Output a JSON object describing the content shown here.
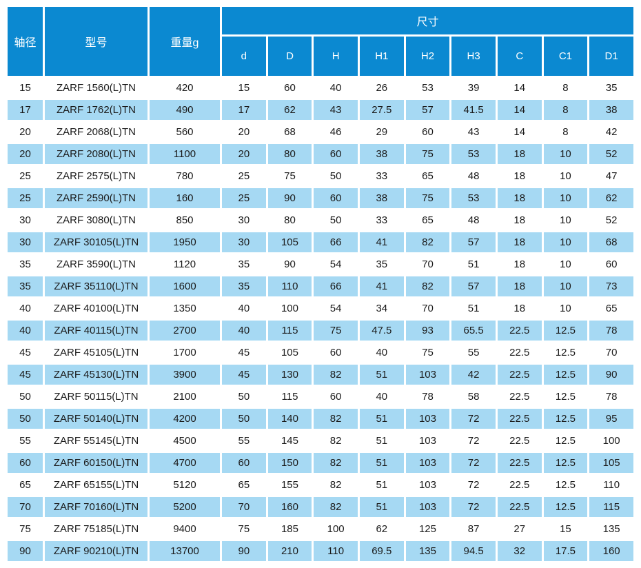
{
  "chart_data": {
    "type": "table",
    "header": {
      "shaft_diameter": "轴径",
      "model": "型号",
      "weight": "重量g",
      "dimensions_group": "尺寸",
      "dimension_columns": [
        "d",
        "D",
        "H",
        "H1",
        "H2",
        "H3",
        "C",
        "C1",
        "D1"
      ]
    },
    "columns": [
      "轴径",
      "型号",
      "重量g",
      "d",
      "D",
      "H",
      "H1",
      "H2",
      "H3",
      "C",
      "C1",
      "D1"
    ],
    "rows": [
      [
        15,
        "ZARF 1560(L)TN",
        420,
        15,
        60,
        40,
        26,
        53,
        39,
        14,
        8,
        35
      ],
      [
        17,
        "ZARF 1762(L)TN",
        490,
        17,
        62,
        43,
        27.5,
        57,
        41.5,
        14,
        8,
        38
      ],
      [
        20,
        "ZARF 2068(L)TN",
        560,
        20,
        68,
        46,
        29,
        60,
        43,
        14,
        8,
        42
      ],
      [
        20,
        "ZARF 2080(L)TN",
        1100,
        20,
        80,
        60,
        38,
        75,
        53,
        18,
        10,
        52
      ],
      [
        25,
        "ZARF 2575(L)TN",
        780,
        25,
        75,
        50,
        33,
        65,
        48,
        18,
        10,
        47
      ],
      [
        25,
        "ZARF 2590(L)TN",
        160,
        25,
        90,
        60,
        38,
        75,
        53,
        18,
        10,
        62
      ],
      [
        30,
        "ZARF 3080(L)TN",
        850,
        30,
        80,
        50,
        33,
        65,
        48,
        18,
        10,
        52
      ],
      [
        30,
        "ZARF 30105(L)TN",
        1950,
        30,
        105,
        66,
        41,
        82,
        57,
        18,
        10,
        68
      ],
      [
        35,
        "ZARF 3590(L)TN",
        1120,
        35,
        90,
        54,
        35,
        70,
        51,
        18,
        10,
        60
      ],
      [
        35,
        "ZARF 35110(L)TN",
        1600,
        35,
        110,
        66,
        41,
        82,
        57,
        18,
        10,
        73
      ],
      [
        40,
        "ZARF 40100(L)TN",
        1350,
        40,
        100,
        54,
        34,
        70,
        51,
        18,
        10,
        65
      ],
      [
        40,
        "ZARF 40115(L)TN",
        2700,
        40,
        115,
        75,
        47.5,
        93,
        65.5,
        22.5,
        12.5,
        78
      ],
      [
        45,
        "ZARF 45105(L)TN",
        1700,
        45,
        105,
        60,
        40,
        75,
        55,
        22.5,
        12.5,
        70
      ],
      [
        45,
        "ZARF 45130(L)TN",
        3900,
        45,
        130,
        82,
        51,
        103,
        42,
        22.5,
        12.5,
        90
      ],
      [
        50,
        "ZARF 50115(L)TN",
        2100,
        50,
        115,
        60,
        40,
        78,
        58,
        22.5,
        12.5,
        78
      ],
      [
        50,
        "ZARF 50140(L)TN",
        4200,
        50,
        140,
        82,
        51,
        103,
        72,
        22.5,
        12.5,
        95
      ],
      [
        55,
        "ZARF 55145(L)TN",
        4500,
        55,
        145,
        82,
        51,
        103,
        72,
        22.5,
        12.5,
        100
      ],
      [
        60,
        "ZARF 60150(L)TN",
        4700,
        60,
        150,
        82,
        51,
        103,
        72,
        22.5,
        12.5,
        105
      ],
      [
        65,
        "ZARF 65155(L)TN",
        5120,
        65,
        155,
        82,
        51,
        103,
        72,
        22.5,
        12.5,
        110
      ],
      [
        70,
        "ZARF 70160(L)TN",
        5200,
        70,
        160,
        82,
        51,
        103,
        72,
        22.5,
        12.5,
        115
      ],
      [
        75,
        "ZARF 75185(L)TN",
        9400,
        75,
        185,
        100,
        62,
        125,
        87,
        27,
        15,
        135
      ],
      [
        90,
        "ZARF 90210(L)TN",
        13700,
        90,
        210,
        110,
        69.5,
        135,
        94.5,
        32,
        17.5,
        160
      ]
    ]
  },
  "colors": {
    "header_bg": "#0b89d1",
    "stripe_bg": "#a6d9f3",
    "row_bg": "#ffffff",
    "header_text": "#ffffff",
    "body_text": "#1a1a1a"
  }
}
